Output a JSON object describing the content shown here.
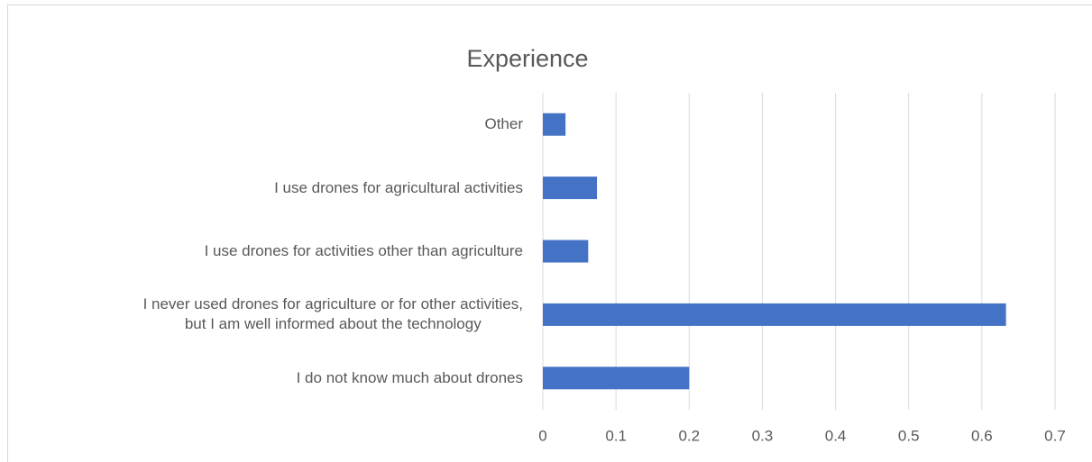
{
  "chart_data": {
    "type": "bar",
    "orientation": "horizontal",
    "title": "Experience",
    "categories": [
      "I do not know much about drones",
      "I never used drones for agriculture or for other activities,\nbut I am well informed about the technology",
      "I use drones for activities other than agriculture",
      "I use drones for agricultural activities",
      "Other"
    ],
    "values": [
      0.2,
      0.633,
      0.062,
      0.074,
      0.031
    ],
    "color": "#4472c4",
    "xlim": [
      0,
      0.7
    ],
    "xticks": [
      0,
      0.1,
      0.2,
      0.3,
      0.4,
      0.5,
      0.6,
      0.7
    ],
    "grid": true
  }
}
